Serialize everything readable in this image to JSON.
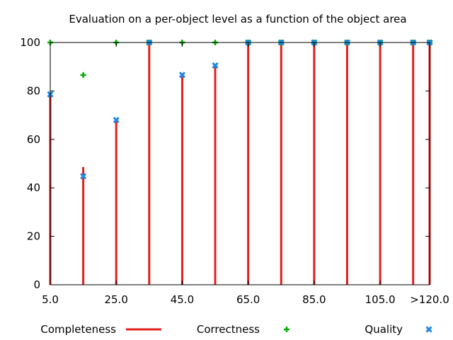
{
  "chart_data": {
    "type": "bar",
    "title": "Evaluation on a per-object level as a function of the object area",
    "xlabel": "",
    "ylabel": "",
    "x": [
      5,
      15,
      25,
      35,
      45,
      55,
      65,
      75,
      85,
      95,
      105,
      115,
      120
    ],
    "xlim": [
      5,
      120
    ],
    "ylim": [
      0,
      100
    ],
    "x_tick_labels": [
      {
        "x": 5,
        "label": "5.0"
      },
      {
        "x": 25,
        "label": "25.0"
      },
      {
        "x": 45,
        "label": "45.0"
      },
      {
        "x": 65,
        "label": "65.0"
      },
      {
        "x": 85,
        "label": "85.0"
      },
      {
        "x": 105,
        "label": "105.0"
      },
      {
        "x": 120,
        "label": ">120.0"
      }
    ],
    "y_tick_labels": [
      {
        "y": 0,
        "label": "0"
      },
      {
        "y": 20,
        "label": "20"
      },
      {
        "y": 40,
        "label": "40"
      },
      {
        "y": 60,
        "label": "60"
      },
      {
        "y": 80,
        "label": "80"
      },
      {
        "y": 100,
        "label": "100"
      }
    ],
    "grid": false,
    "legend_position": "bottom",
    "series": [
      {
        "name": "Completeness",
        "style": "impulses",
        "color": "#e02020",
        "values": [
          78.6,
          48.6,
          68.0,
          100,
          86.6,
          90.5,
          100,
          100,
          100,
          100,
          100,
          100,
          100
        ]
      },
      {
        "name": "Correctness",
        "style": "plus",
        "color": "#00b000",
        "values": [
          100,
          86.6,
          100,
          100,
          100,
          100,
          100,
          100,
          100,
          100,
          100,
          100,
          100
        ]
      },
      {
        "name": "Quality",
        "style": "x",
        "color": "#1e88e5",
        "values": [
          78.6,
          44.8,
          68.0,
          100,
          86.6,
          90.5,
          100,
          100,
          100,
          100,
          100,
          100,
          100
        ]
      }
    ]
  }
}
